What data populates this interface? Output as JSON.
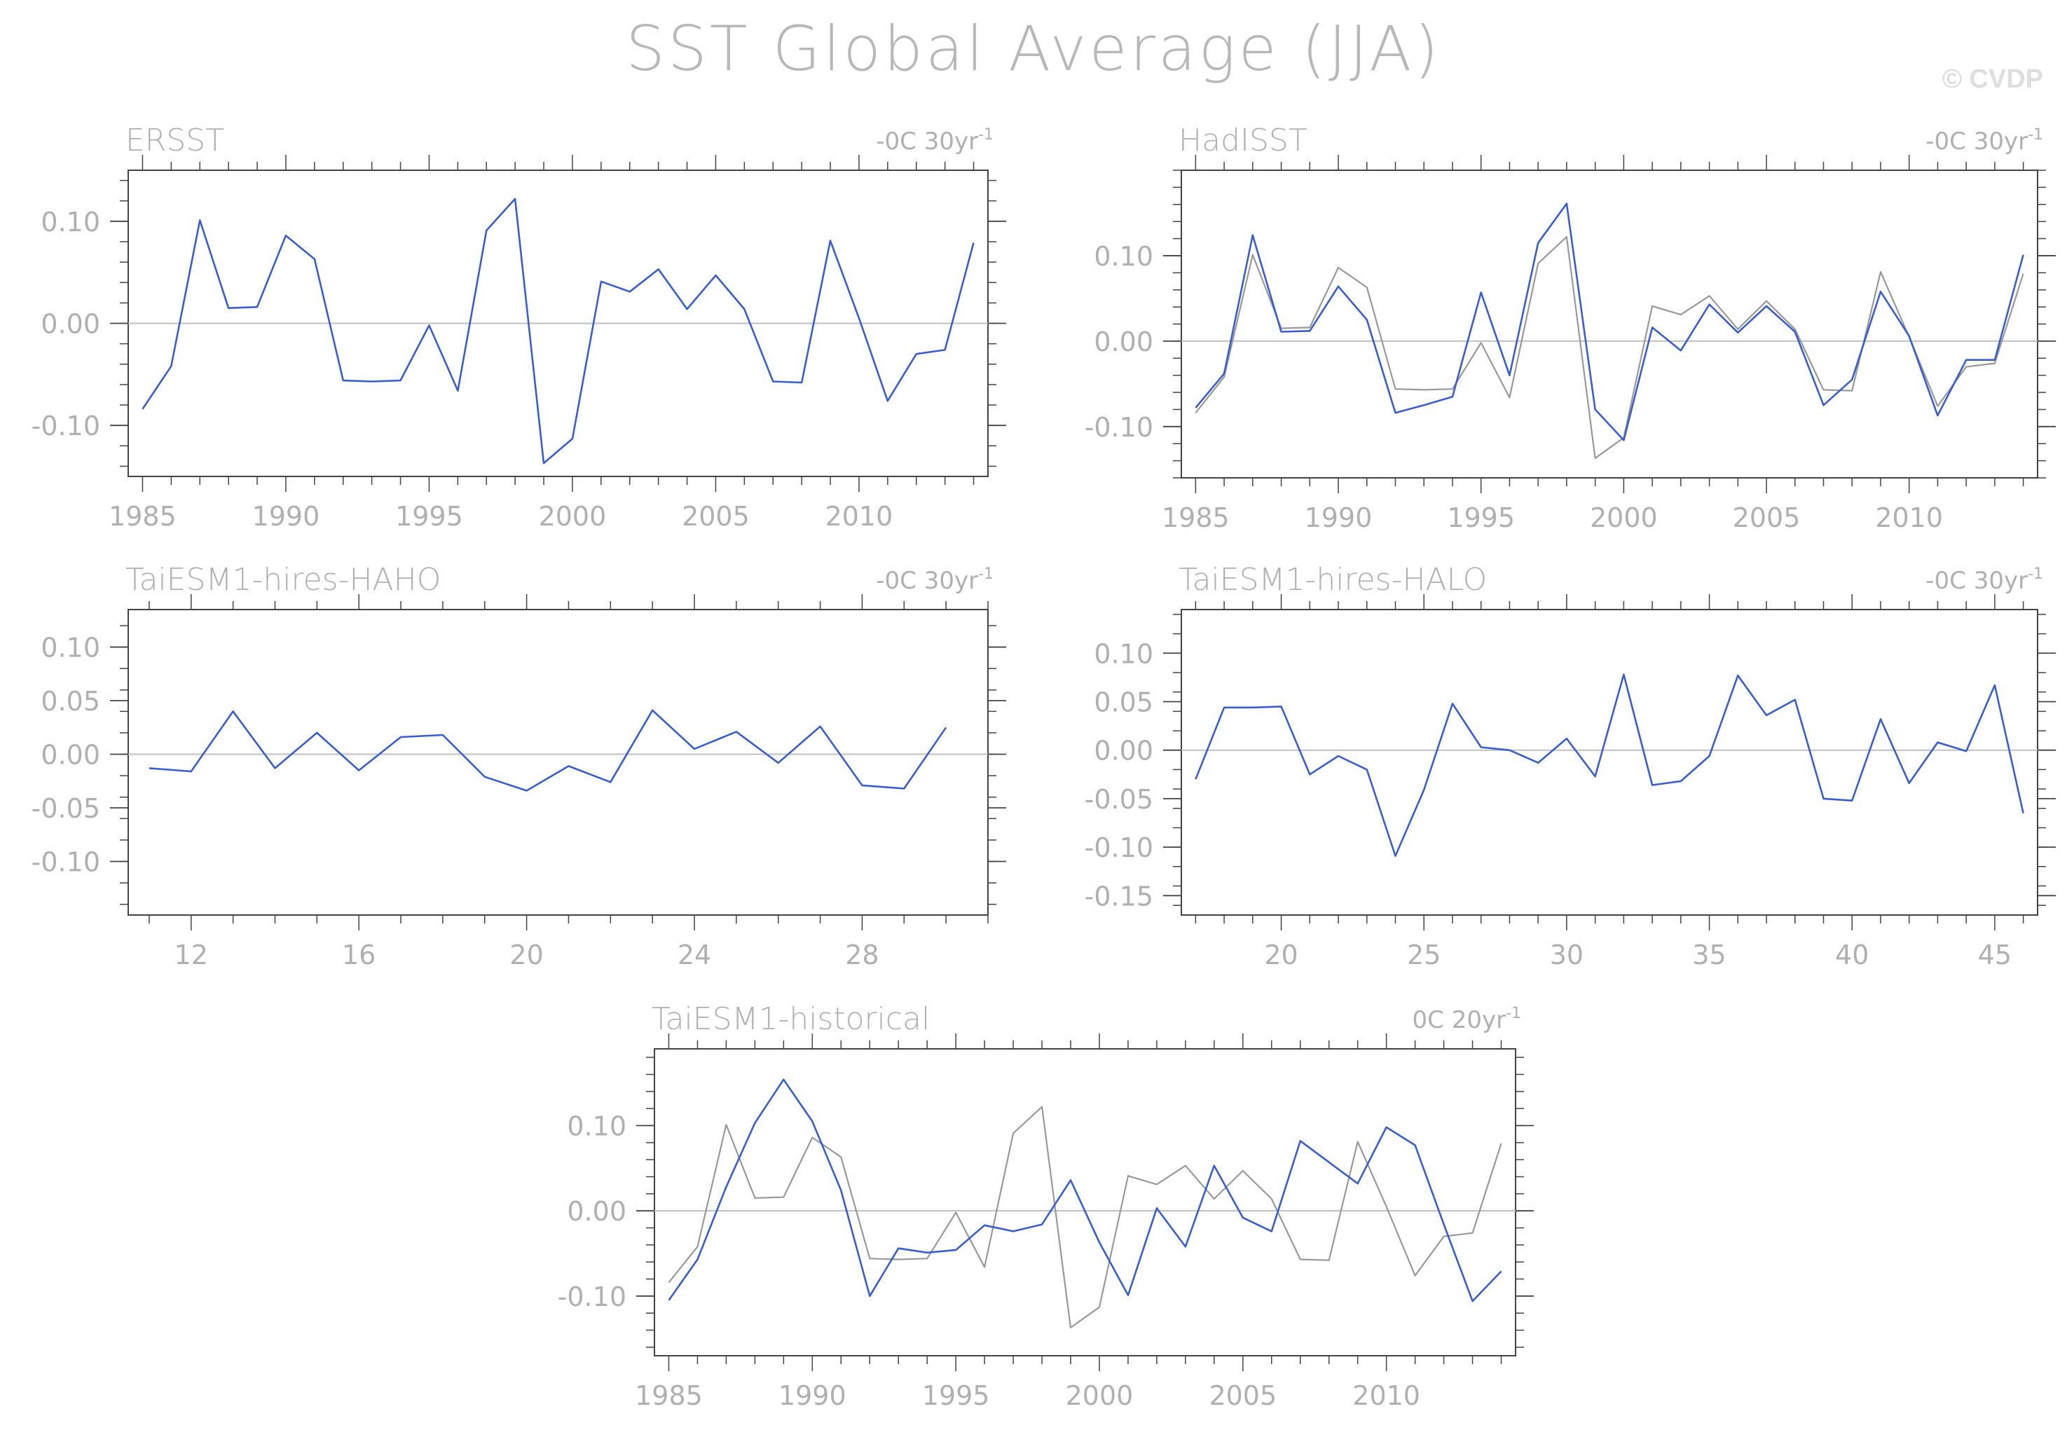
{
  "title": "SST Global Average (JJA)",
  "credit": "© CVDP",
  "colors": {
    "model": "#3a5fcd",
    "observed": "#999999",
    "axis": "#444444",
    "text": "#b0b0b0",
    "zero": "#c0c0c0"
  },
  "chart_data": [
    {
      "type": "line",
      "panel_title": "ERSST",
      "trend_label": "-0C 30yr",
      "trend_sup": "-1",
      "xlim": [
        1984.5,
        1986000.0
      ],
      "x_ticks": [
        1985,
        1990,
        1995,
        2000,
        2005,
        2010
      ],
      "ylim": [
        -0.15,
        0.15
      ],
      "y_ticks": [
        -0.1,
        0.0,
        0.1
      ],
      "y_tick_labels": [
        "-0.10",
        "0.00",
        "0.10"
      ],
      "series": [
        {
          "role": "model",
          "x": [
            1985,
            1986,
            1987,
            1988,
            1989,
            1990,
            1991,
            1992,
            1993,
            1994,
            1995,
            1996,
            1997,
            1998,
            1999,
            2000,
            2001,
            2002,
            2003,
            2004,
            2005,
            2006,
            2007,
            2008,
            2009,
            2010,
            2011,
            2012,
            2013,
            2014
          ],
          "y": [
            -0.084,
            -0.042,
            0.101,
            0.015,
            0.016,
            0.086,
            0.063,
            -0.056,
            -0.057,
            -0.056,
            -0.002,
            -0.066,
            0.091,
            0.122,
            -0.137,
            -0.113,
            0.041,
            0.031,
            0.053,
            0.014,
            0.047,
            0.014,
            -0.057,
            -0.058,
            0.081,
            0.005,
            -0.076,
            -0.03,
            -0.026,
            0.079
          ]
        }
      ]
    },
    {
      "type": "line",
      "panel_title": "HadISST",
      "trend_label": "-0C 30yr",
      "trend_sup": "-1",
      "xlim": [
        1984.5,
        2014.5
      ],
      "x_ticks": [
        1985,
        1990,
        1995,
        2000,
        2005,
        2010
      ],
      "ylim": [
        -0.16,
        0.2
      ],
      "y_ticks": [
        -0.1,
        0.0,
        0.1
      ],
      "y_tick_labels": [
        "-0.10",
        "0.00",
        "0.10"
      ],
      "series": [
        {
          "role": "observed",
          "x": [
            1985,
            1986,
            1987,
            1988,
            1989,
            1990,
            1991,
            1992,
            1993,
            1994,
            1995,
            1996,
            1997,
            1998,
            1999,
            2000,
            2001,
            2002,
            2003,
            2004,
            2005,
            2006,
            2007,
            2008,
            2009,
            2010,
            2011,
            2012,
            2013,
            2014
          ],
          "y": [
            -0.084,
            -0.042,
            0.101,
            0.015,
            0.016,
            0.086,
            0.063,
            -0.056,
            -0.057,
            -0.056,
            -0.002,
            -0.066,
            0.091,
            0.122,
            -0.137,
            -0.113,
            0.041,
            0.031,
            0.053,
            0.014,
            0.047,
            0.014,
            -0.057,
            -0.058,
            0.081,
            0.005,
            -0.076,
            -0.03,
            -0.026,
            0.079
          ]
        },
        {
          "role": "model",
          "x": [
            1985,
            1986,
            1987,
            1988,
            1989,
            1990,
            1991,
            1992,
            1993,
            1994,
            1995,
            1996,
            1997,
            1998,
            1999,
            2000,
            2001,
            2002,
            2003,
            2004,
            2005,
            2006,
            2007,
            2008,
            2009,
            2010,
            2011,
            2012,
            2013,
            2014
          ],
          "y": [
            -0.078,
            -0.038,
            0.124,
            0.011,
            0.012,
            0.064,
            0.025,
            -0.084,
            -0.075,
            -0.065,
            0.057,
            -0.04,
            0.115,
            0.161,
            -0.08,
            -0.116,
            0.016,
            -0.011,
            0.043,
            0.01,
            0.041,
            0.011,
            -0.075,
            -0.045,
            0.058,
            0.006,
            -0.087,
            -0.022,
            -0.022,
            0.101
          ]
        }
      ]
    },
    {
      "type": "line",
      "panel_title": "TaiESM1-hires-HAHO",
      "trend_label": "-0C 30yr",
      "trend_sup": "-1",
      "xlim": [
        10.5,
        31.0
      ],
      "x_ticks": [
        12,
        16,
        20,
        24,
        28
      ],
      "ylim": [
        -0.15,
        0.135
      ],
      "y_ticks": [
        -0.1,
        -0.05,
        0.0,
        0.05,
        0.1
      ],
      "y_tick_labels": [
        "-0.10",
        "-0.05",
        "0.00",
        "0.05",
        "0.10"
      ],
      "series": [
        {
          "role": "model",
          "x": [
            11,
            12,
            13,
            14,
            15,
            16,
            17,
            18,
            19,
            20,
            21,
            22,
            23,
            24,
            25,
            26,
            27,
            28,
            29,
            30
          ],
          "y": [
            -0.013,
            -0.016,
            0.04,
            -0.013,
            0.02,
            -0.015,
            0.016,
            0.018,
            -0.021,
            -0.034,
            -0.011,
            -0.026,
            0.041,
            0.005,
            0.021,
            -0.008,
            0.026,
            -0.029,
            -0.032,
            0.025
          ]
        }
      ]
    },
    {
      "type": "line",
      "panel_title": "TaiESM1-hires-HALO",
      "trend_label": "-0C 30yr",
      "trend_sup": "-1",
      "xlim": [
        16.5,
        46.5
      ],
      "x_ticks": [
        20,
        25,
        30,
        35,
        40,
        45
      ],
      "ylim": [
        -0.17,
        0.145
      ],
      "y_ticks": [
        -0.15,
        -0.1,
        -0.05,
        0.0,
        0.05,
        0.1
      ],
      "y_tick_labels": [
        "-0.15",
        "-0.10",
        "-0.05",
        "0.00",
        "0.05",
        "0.10"
      ],
      "series": [
        {
          "role": "model",
          "x": [
            17,
            18,
            19,
            20,
            21,
            22,
            23,
            24,
            25,
            26,
            27,
            28,
            29,
            30,
            31,
            32,
            33,
            34,
            35,
            36,
            37,
            38,
            39,
            40,
            41,
            42,
            43,
            44,
            45,
            46
          ],
          "y": [
            -0.03,
            0.044,
            0.044,
            0.045,
            -0.025,
            -0.006,
            -0.02,
            -0.109,
            -0.041,
            0.048,
            0.003,
            0.0,
            -0.013,
            0.012,
            -0.027,
            0.078,
            -0.036,
            -0.032,
            -0.006,
            0.077,
            0.036,
            0.052,
            -0.05,
            -0.052,
            0.032,
            -0.034,
            0.008,
            -0.001,
            0.067,
            -0.065
          ]
        }
      ]
    },
    {
      "type": "line",
      "panel_title": "TaiESM1-historical",
      "trend_label": "0C 20yr",
      "trend_sup": "-1",
      "xlim": [
        1984.5,
        2014.5
      ],
      "x_ticks": [
        1985,
        1990,
        1995,
        2000,
        2005,
        2010
      ],
      "ylim": [
        -0.17,
        0.19
      ],
      "y_ticks": [
        -0.1,
        0.0,
        0.1
      ],
      "y_tick_labels": [
        "-0.10",
        "0.00",
        "0.10"
      ],
      "series": [
        {
          "role": "observed",
          "x": [
            1985,
            1986,
            1987,
            1988,
            1989,
            1990,
            1991,
            1992,
            1993,
            1994,
            1995,
            1996,
            1997,
            1998,
            1999,
            2000,
            2001,
            2002,
            2003,
            2004,
            2005,
            2006,
            2007,
            2008,
            2009,
            2010,
            2011,
            2012,
            2013,
            2014
          ],
          "y": [
            -0.084,
            -0.042,
            0.101,
            0.015,
            0.016,
            0.086,
            0.063,
            -0.056,
            -0.057,
            -0.056,
            -0.002,
            -0.066,
            0.091,
            0.122,
            -0.137,
            -0.113,
            0.041,
            0.031,
            0.053,
            0.014,
            0.047,
            0.014,
            -0.057,
            -0.058,
            0.081,
            0.005,
            -0.076,
            -0.03,
            -0.026,
            0.079
          ]
        },
        {
          "role": "model",
          "x": [
            1985,
            1986,
            1987,
            1988,
            1989,
            1990,
            1991,
            1992,
            1993,
            1994,
            1995,
            1996,
            1997,
            1998,
            1999,
            2000,
            2001,
            2002,
            2003,
            2004,
            2005,
            2006,
            2007,
            2008,
            2009,
            2010,
            2011,
            2012,
            2013,
            2014
          ],
          "y": [
            -0.105,
            -0.057,
            0.028,
            0.103,
            0.154,
            0.105,
            0.024,
            -0.1,
            -0.044,
            -0.049,
            -0.046,
            -0.017,
            -0.024,
            -0.016,
            0.036,
            -0.037,
            -0.099,
            0.003,
            -0.042,
            0.053,
            -0.008,
            -0.024,
            0.082,
            0.057,
            0.032,
            0.098,
            0.077,
            -0.016,
            -0.106,
            -0.071
          ]
        }
      ]
    }
  ]
}
